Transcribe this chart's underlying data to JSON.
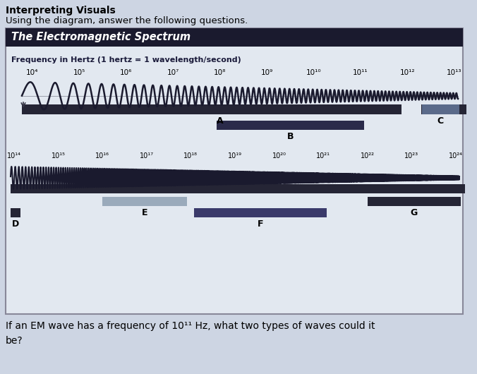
{
  "title_main": "Interpreting Visuals",
  "subtitle": "Using the diagram, answer the following questions.",
  "box_title": "The Electromagnetic Spectrum",
  "freq_label": "Frequency in Hertz (1 hertz = 1 wavelength/second)",
  "top_ticks": [
    "10⁴",
    "10⁵",
    "10⁶",
    "10⁷",
    "10⁸",
    "10⁹",
    "10¹⁰",
    "10¹¹",
    "10¹²",
    "10¹³"
  ],
  "bottom_ticks": [
    "10¹⁴",
    "10¹⁵",
    "10¹⁶",
    "10¹⁷",
    "10¹⁸",
    "10¹⁹",
    "10²⁰",
    "10²¹",
    "10²²",
    "10²³",
    "10²⁴"
  ],
  "question": "If an EM wave has a frequency of 10¹¹ Hz, what two types of waves could it\nbe?",
  "bg_color": "#cdd5e3",
  "box_bg": "#e2e8f0",
  "box_title_bg": "#1a1a2e",
  "box_title_color": "#ffffff",
  "wave_color": "#1a1a2e",
  "bar_dark": "#252535",
  "bar_medium": "#5a6a8a",
  "bar_light": "#9aaabb",
  "bar_b_color": "#2a2a4a",
  "bar_f_color": "#3a3a6a"
}
